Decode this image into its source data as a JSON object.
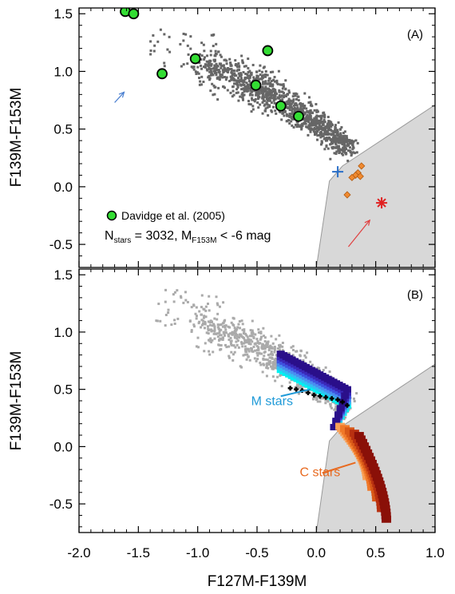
{
  "chart_data": [
    {
      "type": "scatter",
      "panel_tag": "(A)",
      "xlabel": "F127M-F139M",
      "ylabel": "F139M-F153M",
      "xlim": [
        -2.0,
        1.0
      ],
      "ylim": [
        -0.7,
        1.55
      ],
      "xticks": [
        -2.0,
        -1.5,
        -1.0,
        -0.5,
        0.0,
        0.5,
        1.0
      ],
      "yticks": [
        -0.5,
        0.0,
        0.5,
        1.0,
        1.5
      ],
      "xtick_labels": [
        "-2.0",
        "-1.5",
        "-1.0",
        "-0.5",
        "0.0",
        "0.5",
        "1.0"
      ],
      "ytick_labels": [
        "-0.5",
        "0.0",
        "0.5",
        "1.0",
        "1.5"
      ],
      "shaded_region_boundary": [
        [
          0.0,
          -0.7
        ],
        [
          0.11,
          0.05
        ],
        [
          0.22,
          0.18
        ],
        [
          1.0,
          0.71
        ],
        [
          1.0,
          -0.7
        ]
      ],
      "legend": {
        "label": "Davidge et al. (2005)",
        "placement": "lower-left"
      },
      "annotation": {
        "n_prefix": "N",
        "n_sub": "stars",
        "n_value": " = 3032, M",
        "m_sub": "F153M",
        "m_value": " < -6 mag"
      },
      "davidge_points": [
        {
          "x": -1.61,
          "y": 1.52
        },
        {
          "x": -1.54,
          "y": 1.5
        },
        {
          "x": -1.3,
          "y": 0.98
        },
        {
          "x": -1.02,
          "y": 1.11
        },
        {
          "x": -0.41,
          "y": 1.18
        },
        {
          "x": -0.51,
          "y": 0.88
        },
        {
          "x": -0.3,
          "y": 0.7
        },
        {
          "x": -0.15,
          "y": 0.61
        }
      ],
      "stellar_locus": {
        "color": "#666666",
        "x_start": -1.02,
        "x_end": 0.28,
        "y_start": 1.08,
        "y_end": 0.34,
        "n_points": 1200
      },
      "orange_points": [
        {
          "x": 0.38,
          "y": 0.18
        },
        {
          "x": 0.35,
          "y": 0.12
        },
        {
          "x": 0.33,
          "y": 0.1
        },
        {
          "x": 0.3,
          "y": 0.08
        },
        {
          "x": 0.37,
          "y": 0.09
        },
        {
          "x": 0.26,
          "y": -0.07
        }
      ],
      "blue_cross": {
        "x": 0.18,
        "y": 0.13
      },
      "red_star": {
        "x": 0.55,
        "y": -0.14
      },
      "blue_arrow": {
        "x0": -1.7,
        "y0": 0.73,
        "x1": -1.62,
        "y1": 0.82
      },
      "red_arrow": {
        "x0": 0.27,
        "y0": -0.52,
        "x1": 0.45,
        "y1": -0.29
      },
      "colors": {
        "davidge_fill": "#33dd33",
        "locus": "#666666",
        "shade": "#d8d8d8",
        "orange": "#f08a30",
        "blue_cross": "#2a6fc8",
        "red_star": "#e02020",
        "blue_arrow": "#4a7fd0",
        "red_arrow": "#e04040"
      }
    },
    {
      "type": "scatter",
      "panel_tag": "(B)",
      "xlabel": "F127M-F139M",
      "ylabel": "F139M-F153M",
      "xlim": [
        -2.0,
        1.0
      ],
      "ylim": [
        -0.75,
        1.55
      ],
      "xticks": [
        -2.0,
        -1.5,
        -1.0,
        -0.5,
        0.0,
        0.5,
        1.0
      ],
      "yticks": [
        -0.5,
        0.0,
        0.5,
        1.0,
        1.5
      ],
      "xtick_labels": [
        "-2.0",
        "-1.5",
        "-1.0",
        "-0.5",
        "0.0",
        "0.5",
        "1.0"
      ],
      "ytick_labels": [
        "-0.5",
        "0.0",
        "0.5",
        "1.0",
        "1.5"
      ],
      "shaded_region_boundary": [
        [
          0.0,
          -0.75
        ],
        [
          0.11,
          0.05
        ],
        [
          0.22,
          0.18
        ],
        [
          1.0,
          0.72
        ],
        [
          1.0,
          -0.75
        ]
      ],
      "labels": {
        "m_stars": "M stars",
        "c_stars": "C stars"
      },
      "m_stars_label_pos": {
        "x": -0.55,
        "y": 0.36
      },
      "c_stars_label_pos": {
        "x": -0.14,
        "y": -0.26
      },
      "m_stars_pointer": {
        "x0": -0.3,
        "y0": 0.44,
        "x1": -0.05,
        "y1": 0.5
      },
      "c_stars_pointer": {
        "x0": 0.05,
        "y0": -0.23,
        "x1": 0.33,
        "y1": -0.14
      },
      "stellar_locus": {
        "color": "#aaaaaa",
        "x_start": -1.02,
        "x_end": 0.28,
        "y_start": 1.08,
        "y_end": 0.34,
        "n_points": 1000
      },
      "black_track": [
        {
          "x": -0.22,
          "y": 0.51
        },
        {
          "x": -0.17,
          "y": 0.5
        },
        {
          "x": -0.12,
          "y": 0.49
        },
        {
          "x": -0.07,
          "y": 0.47
        },
        {
          "x": -0.02,
          "y": 0.45
        },
        {
          "x": 0.03,
          "y": 0.44
        },
        {
          "x": 0.08,
          "y": 0.43
        },
        {
          "x": 0.13,
          "y": 0.42
        },
        {
          "x": 0.18,
          "y": 0.41
        },
        {
          "x": 0.22,
          "y": 0.39
        },
        {
          "x": 0.26,
          "y": 0.36
        }
      ],
      "m_star_bands": {
        "colors": [
          "#00f0f0",
          "#34bff2",
          "#4a8ef0",
          "#3f52e0",
          "#3a28b8",
          "#2a0f8a"
        ],
        "x_start": -0.3,
        "x_end": 0.26,
        "y_start": 0.67,
        "y_end": 0.22,
        "tail_end": {
          "x": 0.15,
          "y": 0.17
        }
      },
      "c_star_bands": {
        "colors": [
          "#f8a058",
          "#f07828",
          "#d85818",
          "#b83010",
          "#8a1008"
        ],
        "x_start": 0.2,
        "x_end": 0.45,
        "y_start": 0.18,
        "y_end": -0.55
      },
      "colors": {
        "locus": "#aaaaaa",
        "shade": "#d8d8d8",
        "m_label": "#1f9ad8",
        "c_label": "#e86a20",
        "track": "#000000"
      }
    }
  ]
}
